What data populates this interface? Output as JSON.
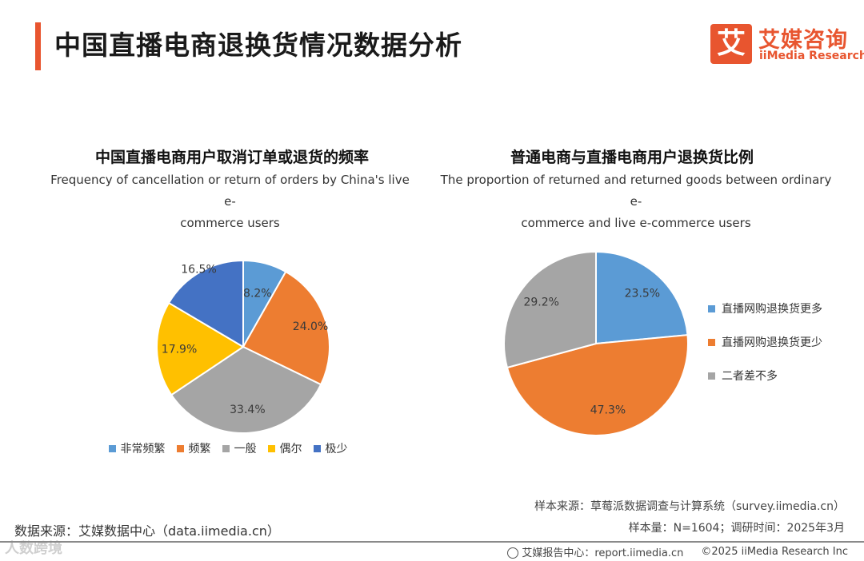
{
  "page": {
    "title": "中国直播电商退换货情况数据分析"
  },
  "logo": {
    "mark": "艾",
    "cn": "艾媒咨询",
    "en": "iiMedia Research"
  },
  "colors": {
    "accent": "#E8552F",
    "light_blue": "#5B9BD5",
    "orange": "#ED7D31",
    "gray": "#A5A5A5",
    "yellow": "#FFC000",
    "dark_blue": "#4472C4"
  },
  "chart_data": [
    {
      "type": "pie",
      "title": "中国直播电商用户取消订单或退货的频率",
      "subtitle_line1": "Frequency of cancellation or return of orders by China's live e-",
      "subtitle_line2": "commerce users",
      "categories": [
        "非常频繁",
        "频繁",
        "一般",
        "偶尔",
        "极少"
      ],
      "values": [
        8.2,
        24.0,
        33.4,
        17.9,
        16.5
      ],
      "labels": [
        "8.2%",
        "24.0%",
        "33.4%",
        "17.9%",
        "16.5%"
      ],
      "colors": [
        "#5B9BD5",
        "#ED7D31",
        "#A5A5A5",
        "#FFC000",
        "#4472C4"
      ],
      "legend_position": "bottom"
    },
    {
      "type": "pie",
      "title": "普通电商与直播电商用户退换货比例",
      "subtitle_line1": "The proportion of returned and returned goods between ordinary e-",
      "subtitle_line2": "commerce and live e-commerce users",
      "categories": [
        "直播网购退换货更多",
        "直播网购退换货更少",
        "二者差不多"
      ],
      "values": [
        23.5,
        47.3,
        29.2
      ],
      "labels": [
        "23.5%",
        "47.3%",
        "29.2%"
      ],
      "colors": [
        "#5B9BD5",
        "#ED7D31",
        "#A5A5A5"
      ],
      "legend_position": "right"
    }
  ],
  "source": {
    "sample_source": "样本来源：草莓派数据调查与计算系统（survey.iimedia.cn）",
    "sample_info": "样本量：N=1604；调研时间：2025年3月",
    "data_source": "数据来源：艾媒数据中心（data.iimedia.cn）"
  },
  "watermark": "人数跨境",
  "footer": {
    "report_center": "艾媒报告中心：report.iimedia.cn",
    "copyright": "©2025  iiMedia Research  Inc"
  }
}
